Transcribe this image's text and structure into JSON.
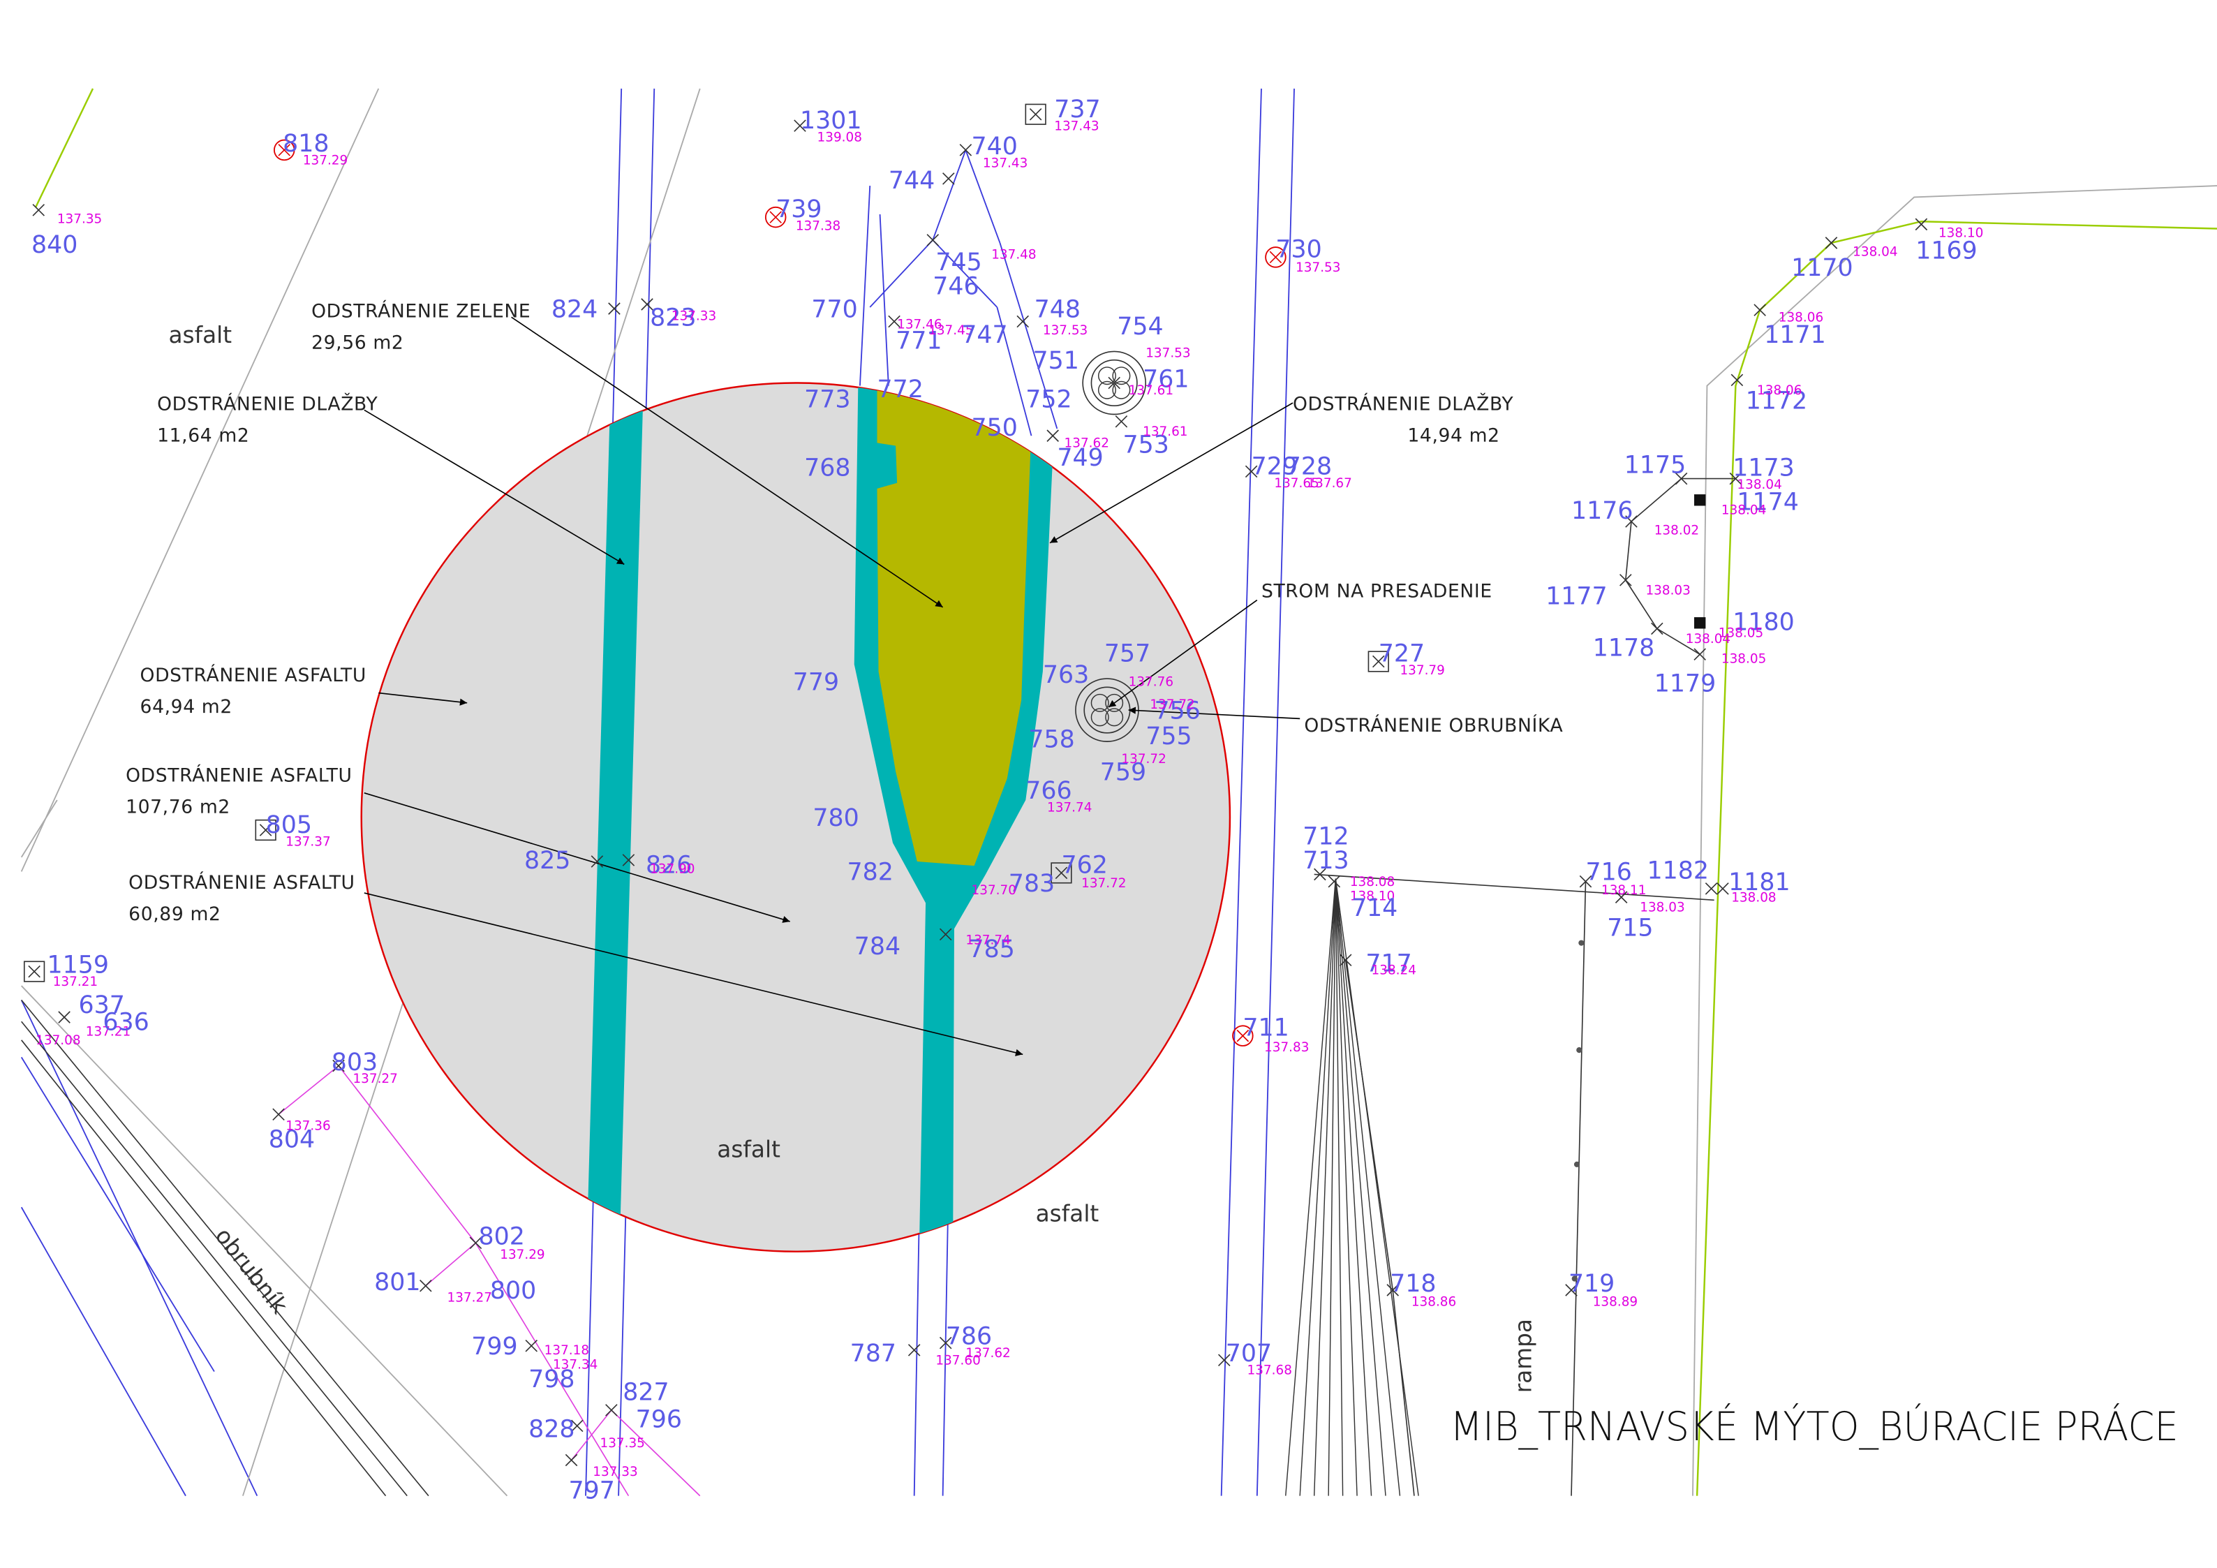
{
  "title": "MIB_TRNAVSKÉ MÝTO_BÚRACIE PRÁCE",
  "annotations": [
    {
      "label": "ODSTRÁNENIE ZELENE",
      "area": "29,56 m2"
    },
    {
      "label": "ODSTRÁNENIE DLAŽBY",
      "area": "11,64 m2"
    },
    {
      "label": "ODSTRÁNENIE DLAŽBY",
      "area": "14,94 m2"
    },
    {
      "label": "STROM NA PRESADENIE"
    },
    {
      "label": "ODSTRÁNENIE OBRUBNÍKA"
    },
    {
      "label": "ODSTRÁNENIE ASFALTU",
      "area": "64,94 m2"
    },
    {
      "label": "ODSTRÁNENIE ASFALTU",
      "area": "107,76 m2"
    },
    {
      "label": "ODSTRÁNENIE ASFALTU",
      "area": "60,89 m2"
    }
  ],
  "surface_labels": [
    "asfalt",
    "asfalt",
    "asfalt",
    "obrubník",
    "rampa"
  ],
  "points": [
    {
      "id": "818",
      "elev": "137.29"
    },
    {
      "id": "840",
      "elev": "137.35"
    },
    {
      "id": "1301",
      "elev": "139.08"
    },
    {
      "id": "737",
      "elev": "137.43"
    },
    {
      "id": "740",
      "elev": "137.43"
    },
    {
      "id": "744"
    },
    {
      "id": "745",
      "elev": "137.48"
    },
    {
      "id": "746"
    },
    {
      "id": "739",
      "elev": "137.38"
    },
    {
      "id": "730",
      "elev": "137.53"
    },
    {
      "id": "1170",
      "elev": "138.04"
    },
    {
      "id": "1169",
      "elev": "138.10"
    },
    {
      "id": "824"
    },
    {
      "id": "823",
      "elev": "137.33"
    },
    {
      "id": "770",
      "elev": "137.46"
    },
    {
      "id": "771",
      "elev": "137.45"
    },
    {
      "id": "747"
    },
    {
      "id": "748",
      "elev": "137.53"
    },
    {
      "id": "754",
      "elev": "137.53"
    },
    {
      "id": "751"
    },
    {
      "id": "761",
      "elev": "137.61"
    },
    {
      "id": "752",
      "elev": "137.62"
    },
    {
      "id": "753",
      "elev": "137.61"
    },
    {
      "id": "750"
    },
    {
      "id": "749"
    },
    {
      "id": "773"
    },
    {
      "id": "772"
    },
    {
      "id": "768"
    },
    {
      "id": "1171",
      "elev": "138.06"
    },
    {
      "id": "1172",
      "elev": "138.06"
    },
    {
      "id": "729",
      "elev": "137.65"
    },
    {
      "id": "728",
      "elev": "137.67"
    },
    {
      "id": "1175"
    },
    {
      "id": "1173",
      "elev": "138.04"
    },
    {
      "id": "1174",
      "elev": "138.04"
    },
    {
      "id": "1176",
      "elev": "138.02"
    },
    {
      "id": "1177",
      "elev": "138.03"
    },
    {
      "id": "1178",
      "elev": "138.04"
    },
    {
      "id": "1180",
      "elev": "138.05"
    },
    {
      "id": "1179",
      "elev": "138.05"
    },
    {
      "id": "727",
      "elev": "137.79"
    },
    {
      "id": "757",
      "elev": "137.76"
    },
    {
      "id": "763"
    },
    {
      "id": "779"
    },
    {
      "id": "758"
    },
    {
      "id": "755"
    },
    {
      "id": "756",
      "elev": "137.72"
    },
    {
      "id": "759",
      "elev": "137.72"
    },
    {
      "id": "766",
      "elev": "137.74"
    },
    {
      "id": "780"
    },
    {
      "id": "805",
      "elev": "137.37"
    },
    {
      "id": "825"
    },
    {
      "id": "826",
      "elev": "137.90"
    },
    {
      "id": "782"
    },
    {
      "id": "762",
      "elev": "137.72"
    },
    {
      "id": "783",
      "elev": "137.70"
    },
    {
      "id": "784"
    },
    {
      "id": "785",
      "elev": "137.74"
    },
    {
      "id": "712",
      "elev": "138.08"
    },
    {
      "id": "713",
      "elev": "138.10"
    },
    {
      "id": "714"
    },
    {
      "id": "716",
      "elev": "138.11"
    },
    {
      "id": "715",
      "elev": "138.03"
    },
    {
      "id": "1182"
    },
    {
      "id": "1181",
      "elev": "138.08"
    },
    {
      "id": "717",
      "elev": "138.24"
    },
    {
      "id": "1159",
      "elev": "137.21"
    },
    {
      "id": "637",
      "elev": "137.21"
    },
    {
      "id": "636",
      "elev": "137.08"
    },
    {
      "id": "711",
      "elev": "137.83"
    },
    {
      "id": "803",
      "elev": "137.27"
    },
    {
      "id": "804",
      "elev": "137.36"
    },
    {
      "id": "802",
      "elev": "137.29"
    },
    {
      "id": "801",
      "elev": "137.27"
    },
    {
      "id": "800"
    },
    {
      "id": "799",
      "elev": "137.18"
    },
    {
      "id": "798",
      "elev": "137.34"
    },
    {
      "id": "718",
      "elev": "138.86"
    },
    {
      "id": "719",
      "elev": "138.89"
    },
    {
      "id": "787",
      "elev": "137.60"
    },
    {
      "id": "786",
      "elev": "137.62"
    },
    {
      "id": "707",
      "elev": "137.68"
    },
    {
      "id": "827"
    },
    {
      "id": "828"
    },
    {
      "id": "796",
      "elev": "137.35"
    },
    {
      "id": "797",
      "elev": "137.33"
    }
  ]
}
